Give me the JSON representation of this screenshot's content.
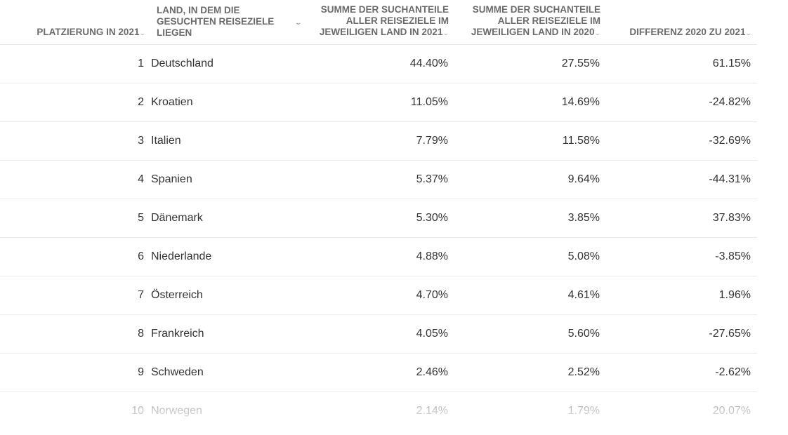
{
  "table": {
    "headers": [
      {
        "label": "PLATZIERUNG IN 2021",
        "align": "right"
      },
      {
        "label": "LAND, IN DEM DIE GESUCHTEN REISEZIELE LIEGEN",
        "align": "left"
      },
      {
        "label": "SUMME DER SUCHANTEILE ALLER REISEZIELE IM JEWEILIGEN LAND IN 2021",
        "align": "right"
      },
      {
        "label": "SUMME DER SUCHANTEILE ALLER REISEZIELE IM JEWEILIGEN LAND IN 2020",
        "align": "right"
      },
      {
        "label": "DIFFERENZ 2020 ZU 2021",
        "align": "right"
      }
    ],
    "sort_icon": "chevron-down-icon",
    "rows": [
      [
        "1",
        "Deutschland",
        "44.40%",
        "27.55%",
        "61.15%"
      ],
      [
        "2",
        "Kroatien",
        "11.05%",
        "14.69%",
        "-24.82%"
      ],
      [
        "3",
        "Italien",
        "7.79%",
        "11.58%",
        "-32.69%"
      ],
      [
        "4",
        "Spanien",
        "5.37%",
        "9.64%",
        "-44.31%"
      ],
      [
        "5",
        "Dänemark",
        "5.30%",
        "3.85%",
        "37.83%"
      ],
      [
        "6",
        "Niederlande",
        "4.88%",
        "5.08%",
        "-3.85%"
      ],
      [
        "7",
        "Österreich",
        "4.70%",
        "4.61%",
        "1.96%"
      ],
      [
        "8",
        "Frankreich",
        "4.05%",
        "5.60%",
        "-27.65%"
      ],
      [
        "9",
        "Schweden",
        "2.46%",
        "2.52%",
        "-2.62%"
      ],
      [
        "10",
        "Norwegen",
        "2.14%",
        "1.79%",
        "20.07%"
      ]
    ]
  }
}
